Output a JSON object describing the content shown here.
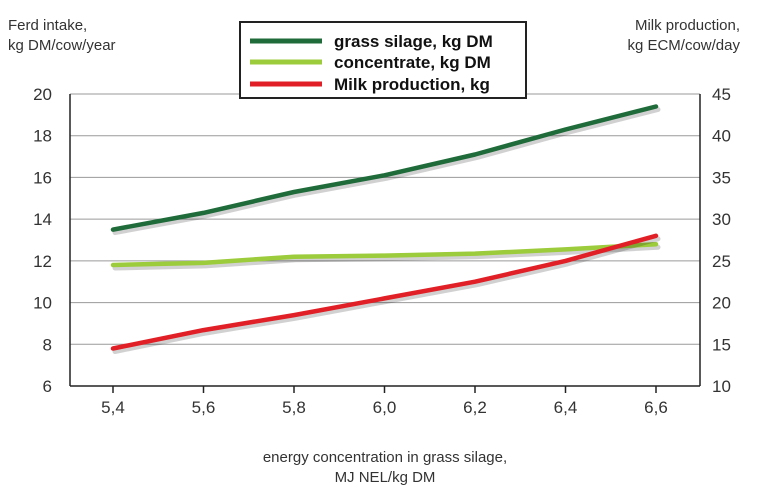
{
  "chart_data": {
    "type": "line",
    "x": [
      "5,4",
      "5,6",
      "5,8",
      "6,0",
      "6,2",
      "6,4",
      "6,6"
    ],
    "left_axis": {
      "title_lines": [
        "Ferd intake,",
        "kg DM/cow/year"
      ],
      "ticks": [
        "6",
        "8",
        "10",
        "12",
        "14",
        "16",
        "18",
        "20"
      ],
      "ylim": [
        6,
        20
      ]
    },
    "right_axis": {
      "title_lines": [
        "Milk production,",
        "kg ECM/cow/day"
      ],
      "ticks": [
        "10",
        "15",
        "20",
        "25",
        "30",
        "35",
        "40",
        "45"
      ],
      "ylim": [
        10,
        45
      ]
    },
    "xlabel_lines": [
      "energy concentration in grass silage,",
      "MJ NEL/kg DM"
    ],
    "grid": true,
    "legend_position": "top-center",
    "series": [
      {
        "name": "grass silage, kg DM",
        "axis": "left",
        "color": "#1f6b3a",
        "values": [
          13.5,
          14.3,
          15.3,
          16.1,
          17.1,
          18.3,
          19.4
        ]
      },
      {
        "name": "concentrate, kg DM",
        "axis": "left",
        "color": "#9ccb3b",
        "values": [
          11.8,
          11.9,
          12.2,
          12.25,
          12.35,
          12.55,
          12.8
        ]
      },
      {
        "name": "Milk production, kg",
        "axis": "right",
        "color": "#e02026",
        "values": [
          14.5,
          16.7,
          18.5,
          20.5,
          22.5,
          25.0,
          28.0
        ]
      }
    ]
  }
}
